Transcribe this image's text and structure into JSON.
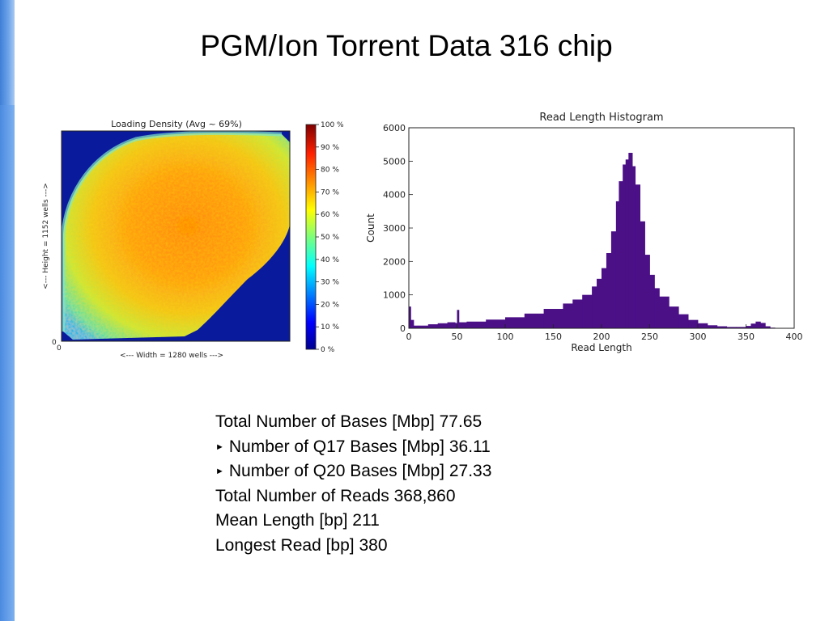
{
  "slide": {
    "title": "PGM/Ion Torrent Data 316 chip"
  },
  "stats": [
    {
      "bullet": false,
      "text": "Total Number of Bases [Mbp] 77.65"
    },
    {
      "bullet": true,
      "text": "Number of Q17 Bases [Mbp] 36.11"
    },
    {
      "bullet": true,
      "text": "Number of Q20 Bases [Mbp] 27.33"
    },
    {
      "bullet": false,
      "text": "Total Number of Reads 368,860"
    },
    {
      "bullet": false,
      "text": "Mean Length [bp] 211"
    },
    {
      "bullet": false,
      "text": "Longest Read [bp] 380"
    }
  ],
  "colors": {
    "side_bar": "#5b95e3",
    "histogram_fill": "#4b0f86",
    "heatmap_background": "#0a1a9c"
  },
  "chart_data": [
    {
      "type": "heatmap",
      "title": "Loading Density (Avg ~ 69%)",
      "xlabel": "<--- Width = 1280 wells --->",
      "ylabel": "<--- Height = 1152 wells --->",
      "x_ticks": [
        "0"
      ],
      "y_ticks": [
        "0"
      ],
      "colorbar": {
        "colormap": "jet",
        "range": [
          0,
          100
        ],
        "ticks": [
          "100 %",
          "90 %",
          "80 %",
          "70 %",
          "60 %",
          "50 %",
          "40 %",
          "30 %",
          "20 %",
          "10 %",
          "0 %"
        ]
      },
      "summary": {
        "average_percent": 69
      }
    },
    {
      "type": "bar",
      "title": "Read Length Histogram",
      "xlabel": "Read Length",
      "ylabel": "Count",
      "xlim": [
        0,
        400
      ],
      "ylim": [
        0,
        6000
      ],
      "x_ticks": [
        0,
        50,
        100,
        150,
        200,
        250,
        300,
        350,
        400
      ],
      "y_ticks": [
        0,
        1000,
        2000,
        3000,
        4000,
        5000,
        6000
      ],
      "grid": false,
      "x": [
        0,
        2,
        5,
        10,
        20,
        30,
        40,
        48,
        50,
        52,
        60,
        80,
        100,
        120,
        140,
        160,
        170,
        180,
        190,
        195,
        200,
        205,
        210,
        215,
        218,
        222,
        225,
        228,
        232,
        235,
        240,
        245,
        250,
        255,
        260,
        270,
        280,
        290,
        300,
        310,
        320,
        330,
        340,
        350,
        355,
        360,
        365,
        370,
        375,
        380
      ],
      "values": [
        650,
        250,
        80,
        80,
        120,
        150,
        180,
        160,
        550,
        180,
        200,
        260,
        330,
        440,
        580,
        740,
        860,
        1000,
        1250,
        1480,
        1800,
        2250,
        2900,
        3800,
        4400,
        4900,
        5050,
        5250,
        4850,
        4300,
        3200,
        2200,
        1600,
        1200,
        950,
        650,
        420,
        250,
        150,
        90,
        60,
        40,
        40,
        70,
        140,
        200,
        160,
        60,
        20,
        5
      ]
    }
  ]
}
